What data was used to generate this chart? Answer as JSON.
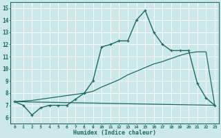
{
  "title": "",
  "xlabel": "Humidex (Indice chaleur)",
  "bg_color": "#cce8e8",
  "grid_color": "#ffffff",
  "line_color": "#1a6b5a",
  "xlim": [
    -0.5,
    23.5
  ],
  "ylim": [
    5.5,
    15.5
  ],
  "xticks": [
    0,
    1,
    2,
    3,
    4,
    5,
    6,
    7,
    8,
    9,
    10,
    11,
    12,
    13,
    14,
    15,
    16,
    17,
    18,
    19,
    20,
    21,
    22,
    23
  ],
  "yticks": [
    6,
    7,
    8,
    9,
    10,
    11,
    12,
    13,
    14,
    15
  ],
  "curve1_x": [
    0,
    1,
    2,
    3,
    4,
    5,
    6,
    7,
    8,
    9,
    10,
    11,
    12,
    13,
    14,
    15,
    16,
    17,
    18,
    19,
    20,
    21,
    22,
    23
  ],
  "curve1_y": [
    7.3,
    7.0,
    6.2,
    6.8,
    7.0,
    7.0,
    7.0,
    7.5,
    8.0,
    9.0,
    11.8,
    12.0,
    12.3,
    12.3,
    14.0,
    14.8,
    13.0,
    12.0,
    11.5,
    11.5,
    11.5,
    8.8,
    7.6,
    7.0
  ],
  "curve2_x": [
    0,
    23
  ],
  "curve2_y": [
    7.3,
    7.0
  ],
  "curve3_x": [
    0,
    1,
    2,
    3,
    4,
    5,
    6,
    7,
    8,
    9,
    10,
    11,
    12,
    13,
    14,
    15,
    16,
    17,
    18,
    19,
    20,
    21,
    22,
    23
  ],
  "curve3_y": [
    7.3,
    7.35,
    7.4,
    7.5,
    7.6,
    7.7,
    7.8,
    7.9,
    8.0,
    8.15,
    8.5,
    8.8,
    9.1,
    9.5,
    9.8,
    10.1,
    10.4,
    10.6,
    10.85,
    11.1,
    11.3,
    11.4,
    11.4,
    7.0
  ]
}
